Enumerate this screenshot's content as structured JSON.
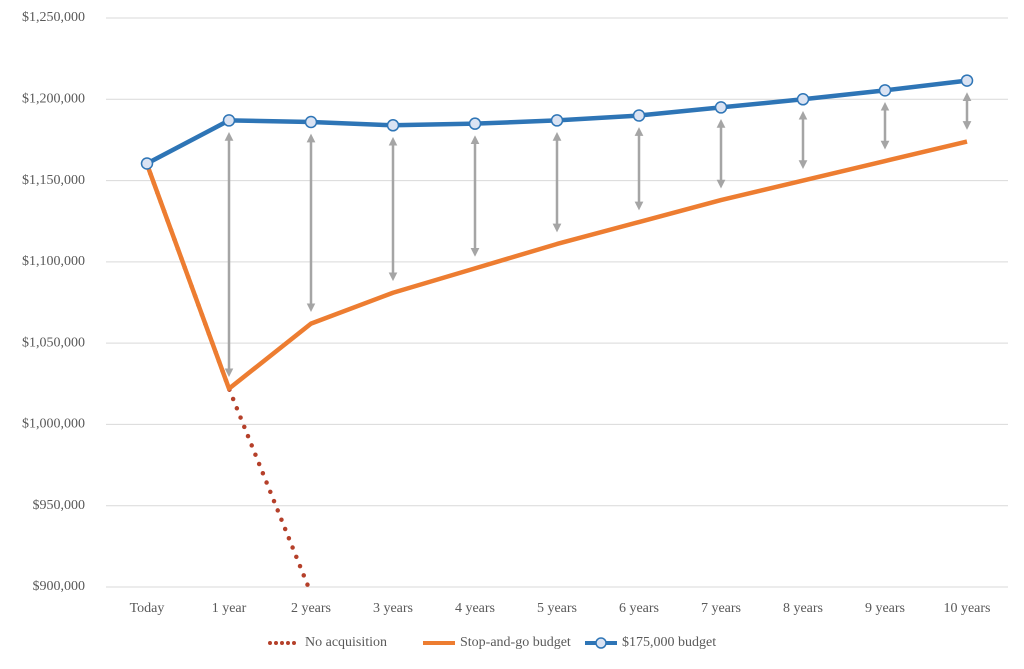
{
  "chart_data": {
    "type": "line",
    "categories": [
      "Today",
      "1 year",
      "2 years",
      "3 years",
      "4 years",
      "5 years",
      "6 years",
      "7 years",
      "8 years",
      "9 years",
      "10 years"
    ],
    "series": [
      {
        "name": "No acquisition",
        "color": "#b5402a",
        "style": "dotted",
        "values": [
          1160000,
          1022000,
          896000,
          null,
          null,
          null,
          null,
          null,
          null,
          null,
          null
        ]
      },
      {
        "name": "Stop-and-go budget",
        "color": "#ed7d31",
        "values": [
          1160000,
          1022000,
          1062000,
          1081000,
          1096000,
          1111000,
          1124500,
          1138000,
          1150000,
          1162000,
          1174000
        ]
      },
      {
        "name": "$175,000 budget",
        "color": "#2e75b6",
        "markers": true,
        "values": [
          1160500,
          1187000,
          1186000,
          1184000,
          1185000,
          1187000,
          1190000,
          1195000,
          1200000,
          1205500,
          1211500
        ]
      }
    ],
    "ylim": [
      900000,
      1250000
    ],
    "yticks": [
      {
        "value": 900000,
        "label": "$900,000"
      },
      {
        "value": 950000,
        "label": "$950,000"
      },
      {
        "value": 1000000,
        "label": "$1,000,000"
      },
      {
        "value": 1050000,
        "label": "$1,050,000"
      },
      {
        "value": 1100000,
        "label": "$1,100,000"
      },
      {
        "value": 1150000,
        "label": "$1,150,000"
      },
      {
        "value": 1200000,
        "label": "$1,200,000"
      },
      {
        "value": 1250000,
        "label": "$1,250,000"
      }
    ],
    "grid": true,
    "legend": "bottom"
  }
}
